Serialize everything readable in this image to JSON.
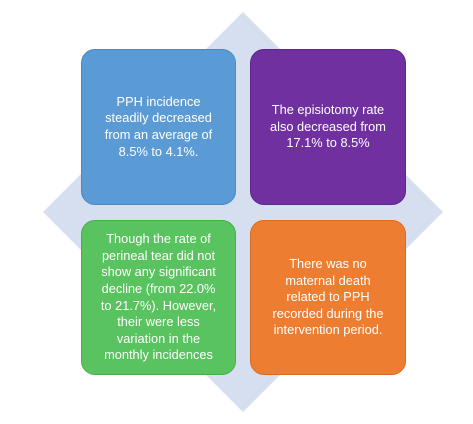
{
  "diagram": {
    "background_shape": {
      "type": "diamond",
      "color": "#d6dff0"
    },
    "boxes": [
      {
        "text": "PPH incidence steadily decreased from an average of 8.5% to 4.1%.",
        "color": "#5b9bd5"
      },
      {
        "text": "The episiotomy rate also decreased from 17.1% to 8.5%",
        "color": "#7030a0"
      },
      {
        "text": "Though the rate of perineal tear did not show any significant decline (from 22.0% to 21.7%). However, their were less variation in the monthly incidences",
        "color": "#59c35f"
      },
      {
        "text": "There was no maternal death related to PPH recorded during the intervention period.",
        "color": "#ed7d31"
      }
    ]
  }
}
